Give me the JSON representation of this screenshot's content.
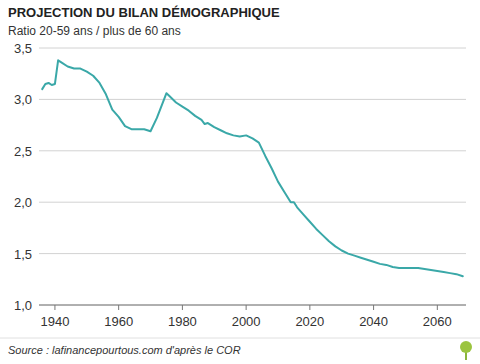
{
  "chart_data": {
    "type": "line",
    "title": "PROJECTION DU BILAN DÉMOGRAPHIQUE",
    "subtitle": "Ratio 20-59 ans / plus de 60 ans",
    "source": "Source : lafinancepourtous.com d'après le COR",
    "color": "#3aa8a8",
    "grid": true,
    "x": [
      1936,
      1937,
      1938,
      1939,
      1940,
      1941,
      1942,
      1944,
      1946,
      1948,
      1950,
      1952,
      1954,
      1956,
      1958,
      1960,
      1962,
      1964,
      1966,
      1968,
      1970,
      1972,
      1974,
      1975,
      1976,
      1978,
      1980,
      1982,
      1984,
      1986,
      1987,
      1988,
      1990,
      1992,
      1994,
      1996,
      1998,
      2000,
      2002,
      2004,
      2006,
      2008,
      2010,
      2012,
      2014,
      2015,
      2016,
      2018,
      2020,
      2022,
      2024,
      2026,
      2028,
      2030,
      2032,
      2034,
      2036,
      2038,
      2040,
      2042,
      2044,
      2046,
      2048,
      2050,
      2052,
      2054,
      2056,
      2058,
      2060,
      2062,
      2064,
      2066,
      2068
    ],
    "values": [
      3.1,
      3.15,
      3.16,
      3.14,
      3.15,
      3.38,
      3.36,
      3.32,
      3.3,
      3.3,
      3.27,
      3.23,
      3.16,
      3.05,
      2.9,
      2.83,
      2.74,
      2.71,
      2.71,
      2.71,
      2.69,
      2.82,
      2.98,
      3.06,
      3.03,
      2.97,
      2.93,
      2.89,
      2.84,
      2.8,
      2.76,
      2.77,
      2.73,
      2.7,
      2.67,
      2.65,
      2.64,
      2.65,
      2.62,
      2.58,
      2.45,
      2.33,
      2.2,
      2.1,
      2.0,
      2.0,
      1.95,
      1.88,
      1.81,
      1.74,
      1.68,
      1.62,
      1.57,
      1.53,
      1.5,
      1.48,
      1.46,
      1.44,
      1.42,
      1.4,
      1.39,
      1.37,
      1.36,
      1.36,
      1.36,
      1.36,
      1.35,
      1.34,
      1.33,
      1.32,
      1.31,
      1.3,
      1.28
    ],
    "xlim": [
      1935,
      2069
    ],
    "xticks": [
      1940,
      1960,
      1980,
      2000,
      2020,
      2040,
      2060
    ],
    "ylim": [
      1,
      3.5
    ],
    "yticks": [
      {
        "value": 1,
        "label": "1,0"
      },
      {
        "value": 1.5,
        "label": "1,5"
      },
      {
        "value": 2,
        "label": "2,0"
      },
      {
        "value": 2.5,
        "label": "2,5"
      },
      {
        "value": 3,
        "label": "3,0"
      },
      {
        "value": 3.5,
        "label": "3,5"
      }
    ]
  }
}
